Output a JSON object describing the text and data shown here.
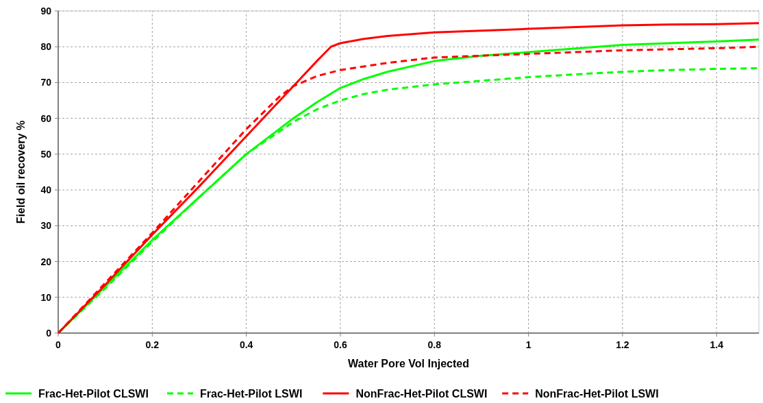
{
  "chart_data": {
    "type": "line",
    "xlabel": "Water Pore Vol Injected",
    "ylabel": "Field oil recovery %",
    "xlim": [
      0,
      1.49
    ],
    "ylim": [
      0,
      90
    ],
    "xticks": [
      0,
      0.2,
      0.4,
      0.6,
      0.8,
      1,
      1.2,
      1.4
    ],
    "yticks": [
      0,
      10,
      20,
      30,
      40,
      50,
      60,
      70,
      80,
      90
    ],
    "grid": true,
    "legend": "bottom",
    "series": [
      {
        "name": "Frac-Het-Pilot CLSWI",
        "color": "#00ff00",
        "line_style": "solid",
        "x": [
          0,
          0.1,
          0.2,
          0.3,
          0.4,
          0.5,
          0.55,
          0.6,
          0.65,
          0.7,
          0.8,
          0.9,
          1.0,
          1.1,
          1.2,
          1.3,
          1.4,
          1.49
        ],
        "values": [
          0,
          13,
          26,
          38,
          50,
          60,
          64.5,
          68.5,
          71,
          73,
          76,
          77.5,
          78.5,
          79.5,
          80.5,
          81,
          81.5,
          82
        ]
      },
      {
        "name": "Frac-Het-Pilot LSWI",
        "color": "#00ff00",
        "line_style": "dashed",
        "x": [
          0,
          0.1,
          0.2,
          0.3,
          0.4,
          0.5,
          0.55,
          0.6,
          0.65,
          0.7,
          0.8,
          0.9,
          1.0,
          1.1,
          1.2,
          1.3,
          1.4,
          1.49
        ],
        "values": [
          0,
          12.5,
          25.5,
          38,
          50,
          59,
          62.5,
          65,
          66.8,
          68,
          69.5,
          70.5,
          71.5,
          72.3,
          73,
          73.5,
          73.8,
          74
        ]
      },
      {
        "name": "NonFrac-Het-Pilot CLSWI",
        "color": "#ff0000",
        "line_style": "solid",
        "x": [
          0,
          0.1,
          0.2,
          0.3,
          0.4,
          0.5,
          0.55,
          0.58,
          0.6,
          0.65,
          0.7,
          0.8,
          0.9,
          1.0,
          1.1,
          1.2,
          1.3,
          1.4,
          1.49
        ],
        "values": [
          0,
          13.5,
          27.5,
          41,
          55,
          69,
          76,
          80,
          81,
          82.2,
          83,
          84,
          84.5,
          85,
          85.5,
          86,
          86.2,
          86.3,
          86.6
        ]
      },
      {
        "name": "NonFrac-Het-Pilot LSWI",
        "color": "#ff0000",
        "line_style": "dashed",
        "x": [
          0,
          0.1,
          0.2,
          0.3,
          0.4,
          0.47,
          0.5,
          0.55,
          0.6,
          0.7,
          0.8,
          0.9,
          1.0,
          1.1,
          1.2,
          1.3,
          1.4,
          1.49
        ],
        "values": [
          0,
          14,
          28,
          42.5,
          57,
          66,
          69,
          71.8,
          73.5,
          75.5,
          77,
          77.5,
          78,
          78.5,
          79,
          79.3,
          79.6,
          80
        ]
      }
    ]
  }
}
